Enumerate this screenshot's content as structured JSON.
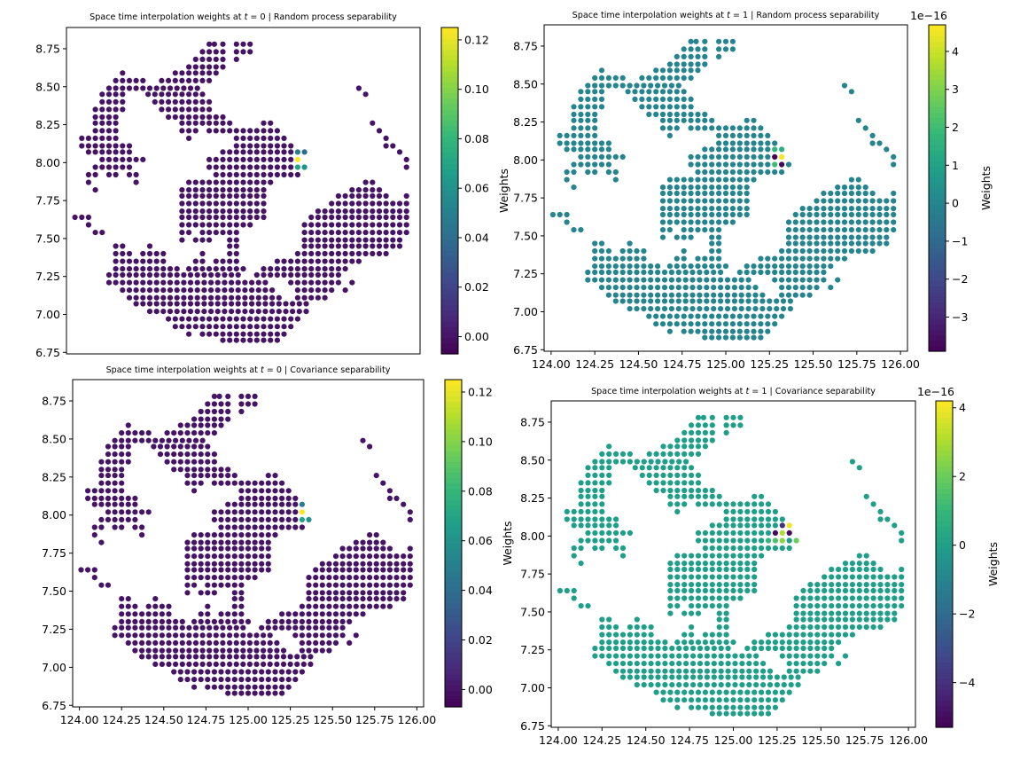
{
  "colors": {
    "viridis": [
      "#440154",
      "#482878",
      "#3e4989",
      "#31688e",
      "#26828e",
      "#1f9e89",
      "#35b779",
      "#6ece58",
      "#b5de2b",
      "#fde725"
    ]
  },
  "map": {
    "rows": [
      {
        "lat": 8.78,
        "runs": [
          [
            124.8,
            124.8
          ],
          [
            124.83,
            124.83
          ],
          [
            124.88,
            124.88
          ],
          [
            124.96,
            125.04
          ]
        ]
      },
      {
        "lat": 8.73,
        "runs": [
          [
            124.76,
            124.88
          ],
          [
            124.96,
            125.04
          ]
        ]
      },
      {
        "lat": 8.68,
        "runs": [
          [
            124.72,
            124.88
          ],
          [
            124.96,
            124.96
          ]
        ]
      },
      {
        "lat": 8.63,
        "runs": [
          [
            124.68,
            124.88
          ]
        ]
      },
      {
        "lat": 8.59,
        "runs": [
          [
            124.29,
            124.29
          ],
          [
            124.6,
            124.84
          ]
        ]
      },
      {
        "lat": 8.54,
        "runs": [
          [
            124.25,
            124.41
          ],
          [
            124.52,
            124.8
          ]
        ]
      },
      {
        "lat": 8.49,
        "runs": [
          [
            124.21,
            124.76
          ],
          [
            125.68,
            125.68
          ]
        ]
      },
      {
        "lat": 8.45,
        "runs": [
          [
            124.17,
            124.29
          ],
          [
            124.44,
            124.76
          ],
          [
            125.72,
            125.72
          ]
        ]
      },
      {
        "lat": 8.4,
        "runs": [
          [
            124.17,
            124.29
          ],
          [
            124.48,
            124.8
          ]
        ]
      },
      {
        "lat": 8.35,
        "runs": [
          [
            124.13,
            124.29
          ],
          [
            124.52,
            124.8
          ]
        ]
      },
      {
        "lat": 8.3,
        "runs": [
          [
            124.13,
            124.25
          ],
          [
            124.56,
            124.88
          ]
        ]
      },
      {
        "lat": 8.26,
        "runs": [
          [
            124.13,
            124.25
          ],
          [
            124.64,
            124.92
          ],
          [
            125.12,
            125.16
          ],
          [
            125.76,
            125.76
          ]
        ]
      },
      {
        "lat": 8.21,
        "runs": [
          [
            124.13,
            124.25
          ],
          [
            124.64,
            124.72
          ],
          [
            124.8,
            125.2
          ],
          [
            125.8,
            125.8
          ]
        ]
      },
      {
        "lat": 8.16,
        "runs": [
          [
            124.05,
            124.25
          ],
          [
            124.68,
            124.68
          ],
          [
            124.96,
            125.24
          ],
          [
            125.84,
            125.84
          ]
        ]
      },
      {
        "lat": 8.11,
        "runs": [
          [
            124.05,
            124.33
          ],
          [
            124.96,
            125.28
          ],
          [
            125.84,
            125.88
          ]
        ]
      },
      {
        "lat": 8.07,
        "runs": [
          [
            124.09,
            124.33
          ],
          [
            124.88,
            125.32
          ],
          [
            125.92,
            125.92
          ]
        ]
      },
      {
        "lat": 8.02,
        "runs": [
          [
            124.17,
            124.41
          ],
          [
            124.8,
            125.32
          ],
          [
            125.96,
            125.96
          ]
        ]
      },
      {
        "lat": 7.97,
        "runs": [
          [
            124.13,
            124.33
          ],
          [
            124.8,
            125.36
          ],
          [
            125.96,
            125.96
          ]
        ]
      },
      {
        "lat": 7.92,
        "runs": [
          [
            124.09,
            124.13
          ],
          [
            124.21,
            124.25
          ],
          [
            124.33,
            124.37
          ],
          [
            124.84,
            125.32
          ]
        ]
      },
      {
        "lat": 7.87,
        "runs": [
          [
            124.09,
            124.09
          ],
          [
            124.37,
            124.37
          ],
          [
            124.68,
            125.16
          ],
          [
            125.72,
            125.76
          ]
        ]
      },
      {
        "lat": 7.82,
        "runs": [
          [
            124.13,
            124.13
          ],
          [
            124.64,
            125.12
          ],
          [
            125.64,
            125.8
          ]
        ]
      },
      {
        "lat": 7.78,
        "runs": [
          [
            124.64,
            125.12
          ],
          [
            125.56,
            125.84
          ],
          [
            125.96,
            125.96
          ]
        ]
      },
      {
        "lat": 7.73,
        "runs": [
          [
            124.64,
            125.12
          ],
          [
            125.52,
            125.96
          ]
        ]
      },
      {
        "lat": 7.68,
        "runs": [
          [
            124.64,
            125.12
          ],
          [
            125.44,
            125.96
          ]
        ]
      },
      {
        "lat": 7.64,
        "runs": [
          [
            124.01,
            124.09
          ],
          [
            124.64,
            125.12
          ],
          [
            125.4,
            125.96
          ]
        ]
      },
      {
        "lat": 7.59,
        "runs": [
          [
            124.09,
            124.09
          ],
          [
            124.64,
            125.04
          ],
          [
            125.36,
            125.96
          ]
        ]
      },
      {
        "lat": 7.54,
        "runs": [
          [
            124.13,
            124.17
          ],
          [
            124.64,
            124.68
          ],
          [
            124.76,
            124.96
          ],
          [
            125.36,
            125.96
          ]
        ]
      },
      {
        "lat": 7.49,
        "runs": [
          [
            124.64,
            124.64
          ],
          [
            124.72,
            124.8
          ],
          [
            124.92,
            124.96
          ],
          [
            125.36,
            125.92
          ]
        ]
      },
      {
        "lat": 7.45,
        "runs": [
          [
            124.25,
            124.29
          ],
          [
            124.45,
            124.45
          ],
          [
            124.92,
            124.96
          ],
          [
            125.36,
            125.92
          ]
        ]
      },
      {
        "lat": 7.4,
        "runs": [
          [
            124.25,
            124.33
          ],
          [
            124.41,
            124.53
          ],
          [
            124.76,
            124.76
          ],
          [
            124.92,
            124.96
          ],
          [
            125.32,
            125.84
          ]
        ]
      },
      {
        "lat": 7.35,
        "runs": [
          [
            124.25,
            124.53
          ],
          [
            124.72,
            124.76
          ],
          [
            124.84,
            124.96
          ],
          [
            125.2,
            125.68
          ]
        ]
      },
      {
        "lat": 7.3,
        "runs": [
          [
            124.25,
            124.61
          ],
          [
            124.68,
            125.0
          ],
          [
            125.12,
            125.6
          ]
        ]
      },
      {
        "lat": 7.26,
        "runs": [
          [
            124.21,
            125.0
          ],
          [
            125.08,
            125.56
          ]
        ]
      },
      {
        "lat": 7.21,
        "runs": [
          [
            124.21,
            125.16
          ],
          [
            125.28,
            125.56
          ],
          [
            125.64,
            125.64
          ]
        ]
      },
      {
        "lat": 7.16,
        "runs": [
          [
            124.29,
            125.2
          ],
          [
            125.32,
            125.52
          ],
          [
            125.6,
            125.6
          ]
        ]
      },
      {
        "lat": 7.11,
        "runs": [
          [
            124.33,
            125.24
          ],
          [
            125.32,
            125.48
          ]
        ]
      },
      {
        "lat": 7.07,
        "runs": [
          [
            124.37,
            125.4
          ]
        ]
      },
      {
        "lat": 7.02,
        "runs": [
          [
            124.45,
            125.4
          ]
        ]
      },
      {
        "lat": 6.97,
        "runs": [
          [
            124.56,
            125.32
          ]
        ]
      },
      {
        "lat": 6.92,
        "runs": [
          [
            124.6,
            125.28
          ]
        ]
      },
      {
        "lat": 6.87,
        "runs": [
          [
            124.68,
            124.68
          ],
          [
            124.76,
            124.8
          ],
          [
            124.84,
            125.24
          ]
        ]
      },
      {
        "lat": 6.83,
        "runs": [
          [
            124.88,
            125.0
          ],
          [
            125.04,
            125.08
          ],
          [
            125.12,
            125.2
          ]
        ]
      }
    ]
  },
  "chart_data": [
    {
      "type": "scatter",
      "title_prefix": "Space time interpolation weights at ",
      "title_var": "t",
      "title_suffix": " = 0 | Random process separability",
      "xlim": [
        123.96,
        126.04
      ],
      "ylim": [
        6.74,
        8.89
      ],
      "xticks": [],
      "yticks": [
        6.75,
        7.0,
        7.25,
        7.5,
        7.75,
        8.0,
        8.25,
        8.5,
        8.75
      ],
      "ytick_labels": [
        "6.75",
        "7.00",
        "7.25",
        "7.50",
        "7.75",
        "8.00",
        "8.25",
        "8.50",
        "8.75"
      ],
      "background_value": 0.0,
      "highlights": [
        {
          "lon": 125.32,
          "lat": 8.02,
          "value": 0.125
        },
        {
          "lon": 125.32,
          "lat": 7.97,
          "value": 0.07
        },
        {
          "lon": 125.36,
          "lat": 7.97,
          "value": 0.06
        },
        {
          "lon": 125.36,
          "lat": 8.07,
          "value": 0.04
        },
        {
          "lon": 125.32,
          "lat": 8.07,
          "value": 0.05
        }
      ],
      "colorbar": {
        "min": -0.007,
        "max": 0.125,
        "ticks": [
          0.0,
          0.02,
          0.04,
          0.06,
          0.08,
          0.1,
          0.12
        ],
        "tick_labels": [
          "0.00",
          "0.02",
          "0.04",
          "0.06",
          "0.08",
          "0.10",
          "0.12"
        ],
        "label": "Weights",
        "exponent": ""
      }
    },
    {
      "type": "scatter",
      "title_prefix": "Space time interpolation weights at ",
      "title_var": "t",
      "title_suffix": " = 1 | Random process separability",
      "xlim": [
        123.96,
        126.04
      ],
      "ylim": [
        6.74,
        8.89
      ],
      "xticks": [
        124.0,
        124.25,
        124.5,
        124.75,
        125.0,
        125.25,
        125.5,
        125.75,
        126.0
      ],
      "xtick_labels": [
        "124.00",
        "124.25",
        "124.50",
        "124.75",
        "125.00",
        "125.25",
        "125.50",
        "125.75",
        "126.00"
      ],
      "yticks": [
        6.75,
        7.0,
        7.25,
        7.5,
        7.75,
        8.0,
        8.25,
        8.5,
        8.75
      ],
      "ytick_labels": [
        "6.75",
        "7.00",
        "7.25",
        "7.50",
        "7.75",
        "8.00",
        "8.25",
        "8.50",
        "8.75"
      ],
      "background_value": 0.0,
      "highlights": [
        {
          "lon": 125.28,
          "lat": 8.02,
          "value": -3.9
        },
        {
          "lon": 125.32,
          "lat": 7.97,
          "value": -3.7
        },
        {
          "lon": 125.32,
          "lat": 8.02,
          "value": 4.6
        },
        {
          "lon": 125.28,
          "lat": 7.97,
          "value": 2.0
        },
        {
          "lon": 125.28,
          "lat": 8.07,
          "value": 1.8
        },
        {
          "lon": 125.32,
          "lat": 8.07,
          "value": 1.5
        }
      ],
      "colorbar": {
        "min": -3.9,
        "max": 4.7,
        "ticks": [
          -3,
          -2,
          -1,
          0,
          1,
          2,
          3,
          4
        ],
        "tick_labels": [
          "−3",
          "−2",
          "−1",
          "0",
          "1",
          "2",
          "3",
          "4"
        ],
        "label": "Weights",
        "exponent": "1e−16"
      }
    },
    {
      "type": "scatter",
      "title_prefix": "Space time interpolation weights at ",
      "title_var": "t",
      "title_suffix": " = 0 | Covariance separability",
      "xlim": [
        123.96,
        126.04
      ],
      "ylim": [
        6.74,
        8.89
      ],
      "xticks": [
        124.0,
        124.25,
        124.5,
        124.75,
        125.0,
        125.25,
        125.5,
        125.75,
        126.0
      ],
      "xtick_labels": [
        "124.00",
        "124.25",
        "124.50",
        "124.75",
        "125.00",
        "125.25",
        "125.50",
        "125.75",
        "126.00"
      ],
      "yticks": [
        6.75,
        7.0,
        7.25,
        7.5,
        7.75,
        8.0,
        8.25,
        8.5,
        8.75
      ],
      "ytick_labels": [
        "6.75",
        "7.00",
        "7.25",
        "7.50",
        "7.75",
        "8.00",
        "8.25",
        "8.50",
        "8.75"
      ],
      "background_value": 0.0,
      "highlights": [
        {
          "lon": 125.32,
          "lat": 8.02,
          "value": 0.125
        },
        {
          "lon": 125.32,
          "lat": 7.97,
          "value": 0.07
        },
        {
          "lon": 125.36,
          "lat": 7.97,
          "value": 0.06
        },
        {
          "lon": 125.32,
          "lat": 8.07,
          "value": 0.05
        }
      ],
      "colorbar": {
        "min": -0.007,
        "max": 0.125,
        "ticks": [
          0.0,
          0.02,
          0.04,
          0.06,
          0.08,
          0.1,
          0.12
        ],
        "tick_labels": [
          "0.00",
          "0.02",
          "0.04",
          "0.06",
          "0.08",
          "0.10",
          "0.12"
        ],
        "label": "Weights",
        "exponent": ""
      }
    },
    {
      "type": "scatter",
      "title_prefix": "Space time interpolation weights at ",
      "title_var": "t",
      "title_suffix": " = 1 | Covariance separability",
      "xlim": [
        123.96,
        126.04
      ],
      "ylim": [
        6.74,
        8.89
      ],
      "xticks": [
        124.0,
        124.25,
        124.5,
        124.75,
        125.0,
        125.25,
        125.5,
        125.75,
        126.0
      ],
      "xtick_labels": [
        "124.00",
        "124.25",
        "124.50",
        "124.75",
        "125.00",
        "125.25",
        "125.50",
        "125.75",
        "126.00"
      ],
      "yticks": [
        6.75,
        7.0,
        7.25,
        7.5,
        7.75,
        8.0,
        8.25,
        8.5,
        8.75
      ],
      "ytick_labels": [
        "6.75",
        "7.00",
        "7.25",
        "7.50",
        "7.75",
        "8.00",
        "8.25",
        "8.50",
        "8.75"
      ],
      "background_value": 0.0,
      "highlights": [
        {
          "lon": 125.24,
          "lat": 8.02,
          "value": -5.0
        },
        {
          "lon": 125.32,
          "lat": 8.02,
          "value": -5.0
        },
        {
          "lon": 125.28,
          "lat": 8.07,
          "value": -4.0
        },
        {
          "lon": 125.32,
          "lat": 8.07,
          "value": 4.0
        },
        {
          "lon": 125.28,
          "lat": 8.02,
          "value": 3.0
        },
        {
          "lon": 125.28,
          "lat": 7.97,
          "value": 2.5
        },
        {
          "lon": 125.24,
          "lat": 7.97,
          "value": 1.5
        },
        {
          "lon": 125.2,
          "lat": 7.97,
          "value": 1.0
        },
        {
          "lon": 125.36,
          "lat": 7.97,
          "value": 2.0
        }
      ],
      "colorbar": {
        "min": -5.3,
        "max": 4.2,
        "ticks": [
          -4,
          -2,
          0,
          2,
          4
        ],
        "tick_labels": [
          "−4",
          "−2",
          "0",
          "2",
          "4"
        ],
        "label": "Weights",
        "exponent": "1e−16"
      }
    }
  ]
}
